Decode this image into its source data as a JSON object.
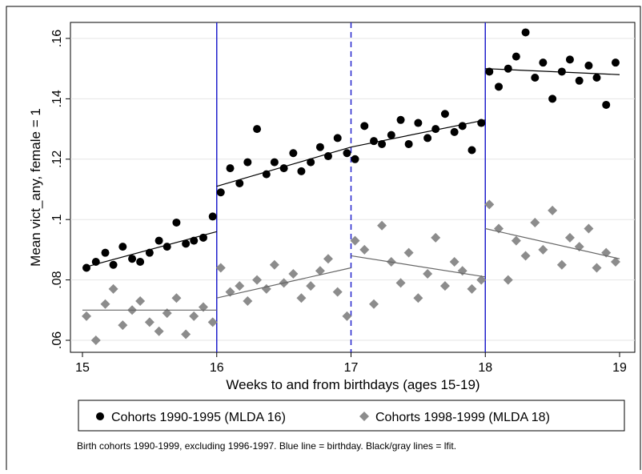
{
  "chart_data": {
    "type": "scatter",
    "xlabel": "Weeks to and from birthdays (ages 15-19)",
    "ylabel": "Mean vict_any, female = 1",
    "note": "Birth cohorts 1990-1999, excluding 1996-1997. Blue line = birthday. Black/gray lines = lfit.",
    "xlim": [
      15,
      19
    ],
    "ylim": [
      0.06,
      0.16
    ],
    "xticks": [
      15,
      16,
      17,
      18,
      19
    ],
    "yticks": [
      {
        "value": 0.06,
        "label": ".06"
      },
      {
        "value": 0.08,
        "label": ".08"
      },
      {
        "value": 0.1,
        "label": ".1"
      },
      {
        "value": 0.12,
        "label": ".12"
      },
      {
        "value": 0.14,
        "label": ".14"
      },
      {
        "value": 0.16,
        "label": ".16"
      }
    ],
    "grid": true,
    "vlines": [
      {
        "x": 16,
        "style": "solid"
      },
      {
        "x": 17,
        "style": "dashed"
      },
      {
        "x": 18,
        "style": "solid"
      }
    ],
    "vline_color": "#2222cc",
    "x": [
      15.03,
      15.1,
      15.17,
      15.23,
      15.3,
      15.37,
      15.43,
      15.5,
      15.57,
      15.63,
      15.7,
      15.77,
      15.83,
      15.9,
      15.97,
      16.03,
      16.1,
      16.17,
      16.23,
      16.3,
      16.37,
      16.43,
      16.5,
      16.57,
      16.63,
      16.7,
      16.77,
      16.83,
      16.9,
      16.97,
      17.03,
      17.1,
      17.17,
      17.23,
      17.3,
      17.37,
      17.43,
      17.5,
      17.57,
      17.63,
      17.7,
      17.77,
      17.83,
      17.9,
      17.97,
      18.03,
      18.1,
      18.17,
      18.23,
      18.3,
      18.37,
      18.43,
      18.5,
      18.57,
      18.63,
      18.7,
      18.77,
      18.83,
      18.9,
      18.97
    ],
    "series": [
      {
        "name": "Cohorts 1990-1995 (MLDA 16)",
        "color": "#000000",
        "marker": "circle",
        "values": [
          0.084,
          0.086,
          0.089,
          0.085,
          0.091,
          0.087,
          0.086,
          0.089,
          0.093,
          0.091,
          0.099,
          0.092,
          0.093,
          0.094,
          0.101,
          0.109,
          0.117,
          0.112,
          0.119,
          0.13,
          0.115,
          0.119,
          0.117,
          0.122,
          0.116,
          0.119,
          0.124,
          0.121,
          0.127,
          0.122,
          0.12,
          0.131,
          0.126,
          0.125,
          0.128,
          0.133,
          0.125,
          0.132,
          0.127,
          0.13,
          0.135,
          0.129,
          0.131,
          0.123,
          0.132,
          0.149,
          0.144,
          0.15,
          0.154,
          0.162,
          0.147,
          0.152,
          0.14,
          0.149,
          0.153,
          0.146,
          0.151,
          0.147,
          0.138,
          0.152
        ],
        "fit": [
          {
            "x": [
              15,
              16
            ],
            "y": [
              0.084,
              0.096
            ]
          },
          {
            "x": [
              16,
              17
            ],
            "y": [
              0.111,
              0.124
            ]
          },
          {
            "x": [
              17,
              18
            ],
            "y": [
              0.124,
              0.133
            ]
          },
          {
            "x": [
              18,
              19
            ],
            "y": [
              0.15,
              0.148
            ]
          }
        ]
      },
      {
        "name": "Cohorts 1998-1999 (MLDA 18)",
        "color": "#8c8c8c",
        "marker": "diamond",
        "values": [
          0.068,
          0.06,
          0.072,
          0.077,
          0.065,
          0.07,
          0.073,
          0.066,
          0.063,
          0.069,
          0.074,
          0.062,
          0.068,
          0.071,
          0.066,
          0.084,
          0.076,
          0.078,
          0.073,
          0.08,
          0.077,
          0.085,
          0.079,
          0.082,
          0.074,
          0.078,
          0.083,
          0.087,
          0.076,
          0.068,
          0.093,
          0.09,
          0.072,
          0.098,
          0.086,
          0.079,
          0.089,
          0.074,
          0.082,
          0.094,
          0.078,
          0.086,
          0.083,
          0.077,
          0.08,
          0.105,
          0.097,
          0.08,
          0.093,
          0.088,
          0.099,
          0.09,
          0.103,
          0.085,
          0.094,
          0.091,
          0.097,
          0.084,
          0.089,
          0.086
        ],
        "fit": [
          {
            "x": [
              15,
              16
            ],
            "y": [
              0.07,
              0.07
            ]
          },
          {
            "x": [
              16,
              17
            ],
            "y": [
              0.074,
              0.084
            ]
          },
          {
            "x": [
              17,
              18
            ],
            "y": [
              0.088,
              0.081
            ]
          },
          {
            "x": [
              18,
              19
            ],
            "y": [
              0.097,
              0.087
            ]
          }
        ]
      }
    ]
  }
}
